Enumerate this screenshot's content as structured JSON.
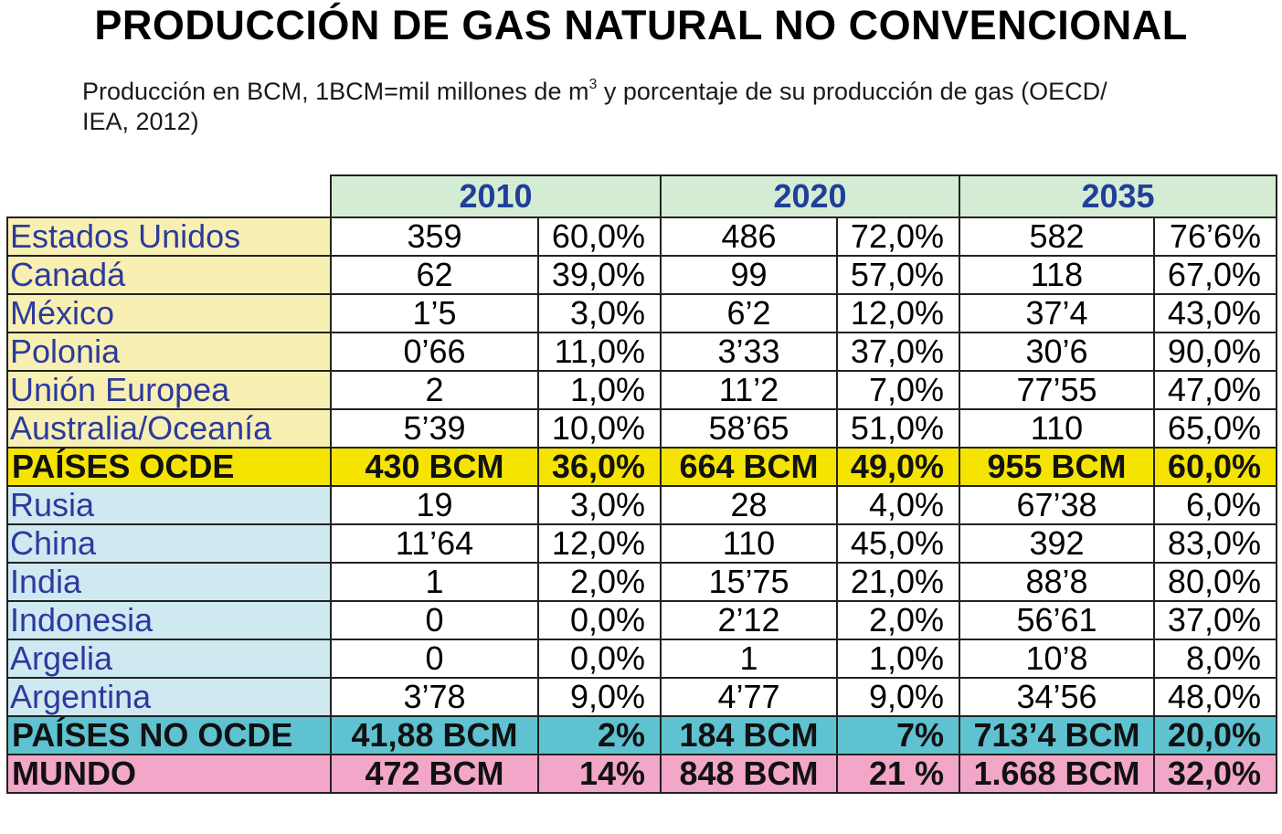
{
  "title": "PRODUCCIÓN DE GAS NATURAL NO CONVENCIONAL",
  "subtitle": {
    "before_sup": "Producción en BCM, 1BCM=mil millones de m",
    "sup": "3",
    "after_sup": " y porcentaje de su producción de gas (OECD/",
    "line2": "IEA, 2012)"
  },
  "years": [
    "2010",
    "2020",
    "2035"
  ],
  "rows": [
    {
      "name": "Estados Unidos",
      "group": "ocde",
      "v2010": "359",
      "p2010": "60,0%",
      "v2020": "486",
      "p2020": "72,0%",
      "v2035": "582",
      "p2035": "76’6%"
    },
    {
      "name": "Canadá",
      "group": "ocde",
      "v2010": "62",
      "p2010": "39,0%",
      "v2020": "99",
      "p2020": "57,0%",
      "v2035": "118",
      "p2035": "67,0%"
    },
    {
      "name": "México",
      "group": "ocde",
      "v2010": "1’5",
      "p2010": "3,0%",
      "v2020": "6’2",
      "p2020": "12,0%",
      "v2035": "37’4",
      "p2035": "43,0%"
    },
    {
      "name": "Polonia",
      "group": "ocde",
      "v2010": "0’66",
      "p2010": "11,0%",
      "v2020": "3’33",
      "p2020": "37,0%",
      "v2035": "30’6",
      "p2035": "90,0%"
    },
    {
      "name": "Unión Europea",
      "group": "ocde",
      "v2010": "2",
      "p2010": "1,0%",
      "v2020": "11’2",
      "p2020": "7,0%",
      "v2035": "77’55",
      "p2035": "47,0%"
    },
    {
      "name": "Australia/Oceanía",
      "group": "ocde",
      "v2010": "5’39",
      "p2010": "10,0%",
      "v2020": "58’65",
      "p2020": "51,0%",
      "v2035": "110",
      "p2035": "65,0%"
    },
    {
      "name": "PAÍSES OCDE",
      "group": "tot-ocde",
      "v2010": "430 BCM",
      "p2010": "36,0%",
      "v2020": "664 BCM",
      "p2020": "49,0%",
      "v2035": "955 BCM",
      "p2035": "60,0%"
    },
    {
      "name": "Rusia",
      "group": "noocde",
      "v2010": "19",
      "p2010": "3,0%",
      "v2020": "28",
      "p2020": "4,0%",
      "v2035": "67’38",
      "p2035": "6,0%"
    },
    {
      "name": "China",
      "group": "noocde",
      "v2010": "11’64",
      "p2010": "12,0%",
      "v2020": "110",
      "p2020": "45,0%",
      "v2035": "392",
      "p2035": "83,0%"
    },
    {
      "name": "India",
      "group": "noocde",
      "v2010": "1",
      "p2010": "2,0%",
      "v2020": "15’75",
      "p2020": "21,0%",
      "v2035": "88’8",
      "p2035": "80,0%"
    },
    {
      "name": "Indonesia",
      "group": "noocde",
      "v2010": "0",
      "p2010": "0,0%",
      "v2020": "2’12",
      "p2020": "2,0%",
      "v2035": "56’61",
      "p2035": "37,0%"
    },
    {
      "name": "Argelia",
      "group": "noocde",
      "v2010": "0",
      "p2010": "0,0%",
      "v2020": "1",
      "p2020": "1,0%",
      "v2035": "10’8",
      "p2035": "8,0%"
    },
    {
      "name": "Argentina",
      "group": "noocde",
      "v2010": "3’78",
      "p2010": "9,0%",
      "v2020": "4’77",
      "p2020": "9,0%",
      "v2035": "34’56",
      "p2035": "48,0%"
    },
    {
      "name": "PAÍSES NO OCDE",
      "group": "tot-noocde",
      "v2010": "41,88 BCM",
      "p2010": "2%",
      "v2020": "184 BCM",
      "p2020": "7%",
      "v2035": "713’4 BCM",
      "p2035": "20,0%"
    },
    {
      "name": "MUNDO",
      "group": "tot-mundo",
      "v2010": "472 BCM",
      "p2010": "14%",
      "v2020": "848 BCM",
      "p2020": "21 %",
      "v2035": "1.668 BCM",
      "p2035": "32,0%"
    }
  ],
  "colors": {
    "header_bg": "#d5ecd4",
    "header_text": "#1f3f99",
    "ocde_name_bg": "#f8f0b2",
    "noocde_name_bg": "#cfe9f1",
    "total_ocde_bg": "#f4e400",
    "total_noocde_bg": "#5ec2d0",
    "total_mundo_bg": "#f2a6c8",
    "country_text": "#2c3a9e"
  }
}
